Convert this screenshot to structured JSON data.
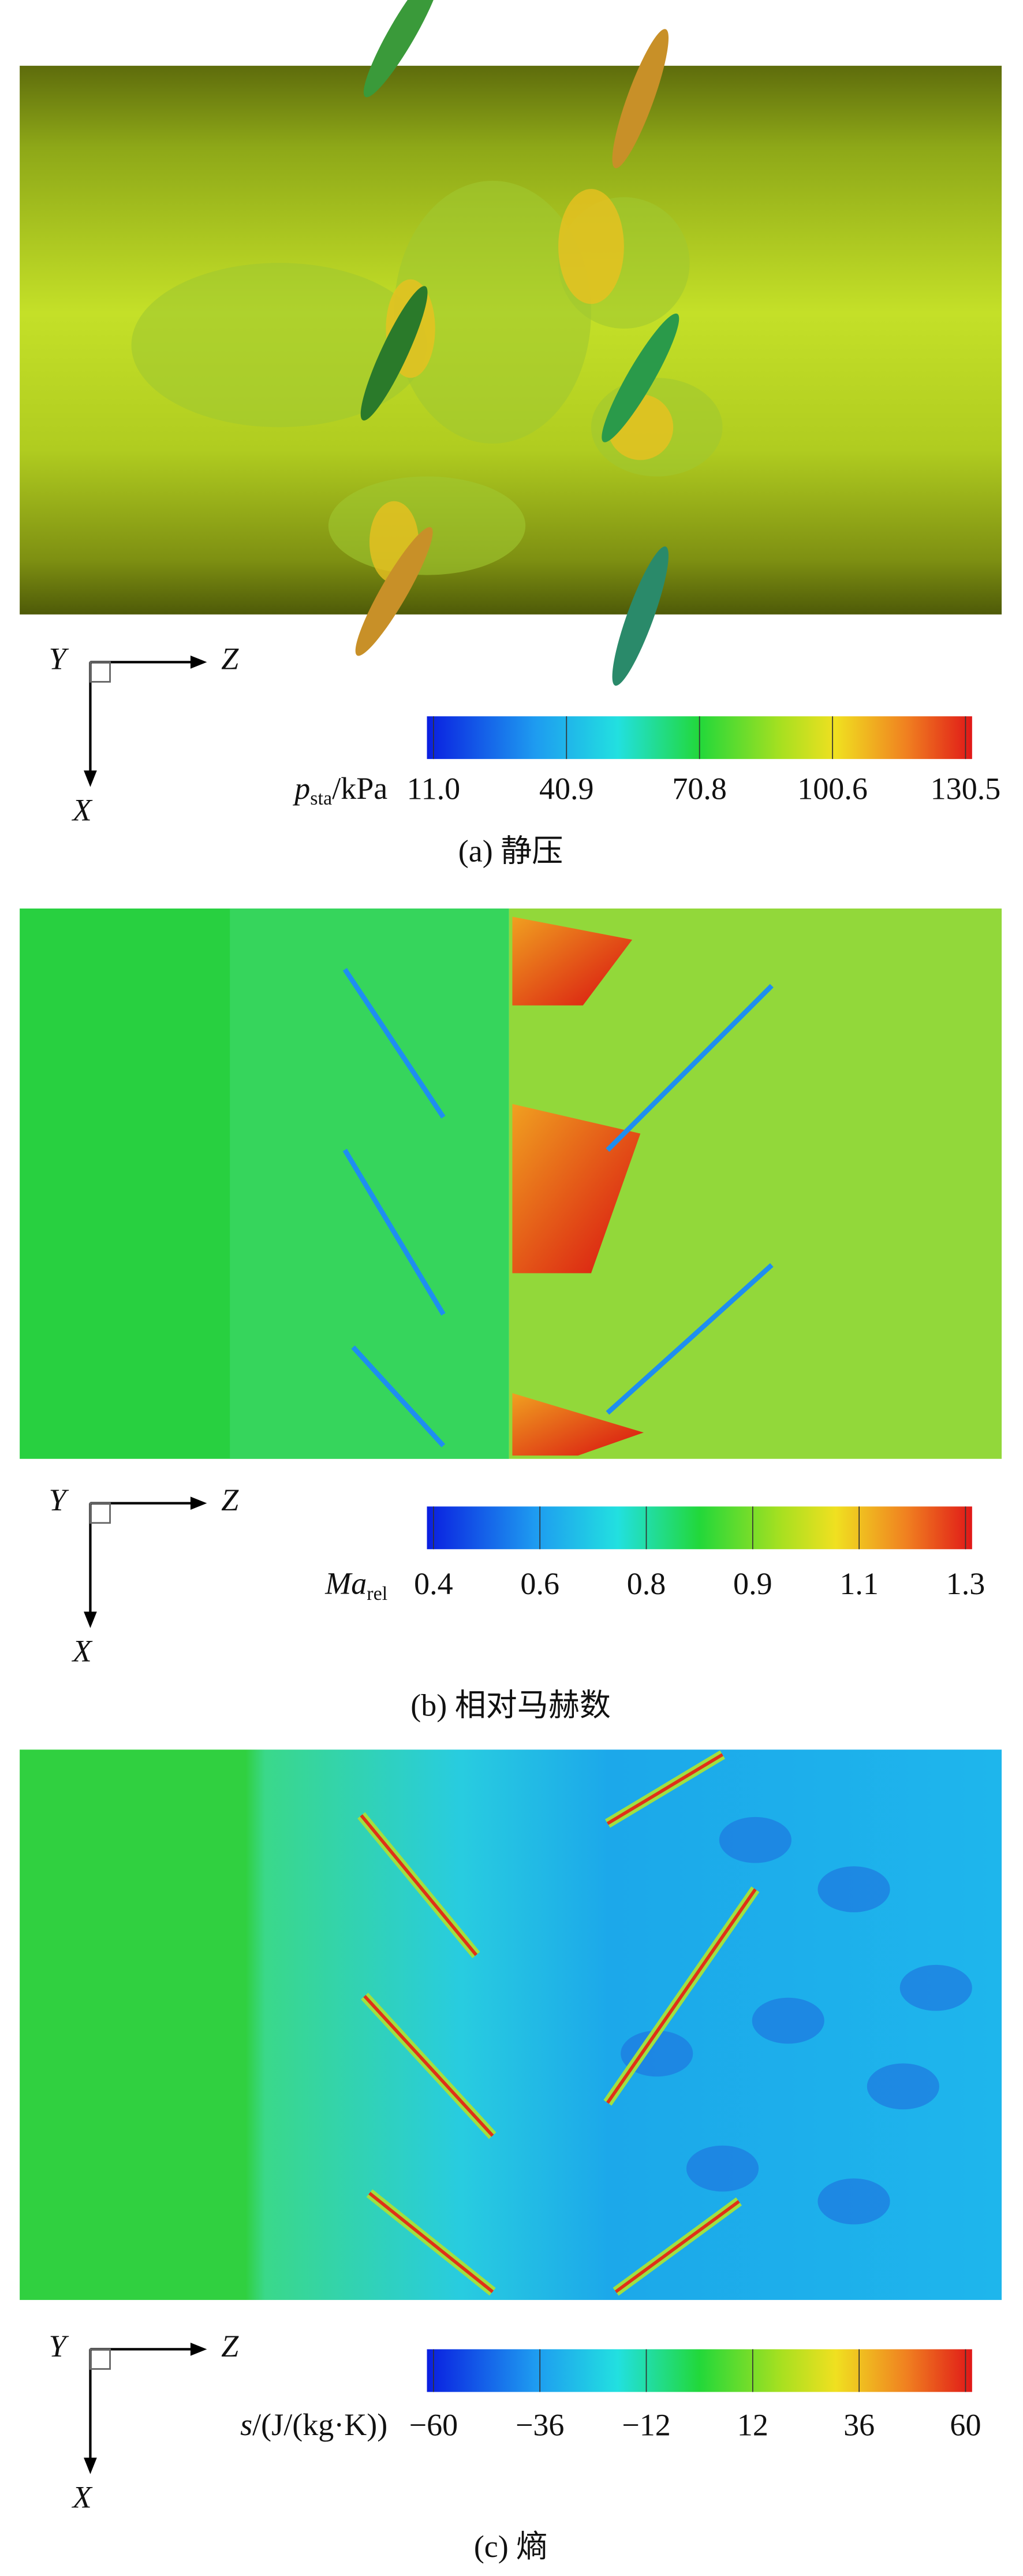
{
  "panels": [
    {
      "axes": {
        "y": "Y",
        "z": "Z",
        "x": "X"
      },
      "colorbar": {
        "symbol": "p",
        "subscript": "sta",
        "unit": "/kPa",
        "ticks": [
          "11.0",
          "40.9",
          "70.8",
          "100.6",
          "130.5"
        ]
      },
      "caption": "(a) 静压"
    },
    {
      "axes": {
        "y": "Y",
        "z": "Z",
        "x": "X"
      },
      "colorbar": {
        "symbol": "Ma",
        "subscript": "rel",
        "unit": "",
        "ticks": [
          "0.4",
          "0.6",
          "0.8",
          "0.9",
          "1.1",
          "1.3"
        ]
      },
      "caption": "(b) 相对马赫数"
    },
    {
      "axes": {
        "y": "Y",
        "z": "Z",
        "x": "X"
      },
      "colorbar": {
        "symbol": "s",
        "subscript": "",
        "unit": "/(J/(kg·K))",
        "ticks": [
          "−60",
          "−36",
          "−12",
          "12",
          "36",
          "60"
        ]
      },
      "caption": "(c) 熵"
    }
  ]
}
